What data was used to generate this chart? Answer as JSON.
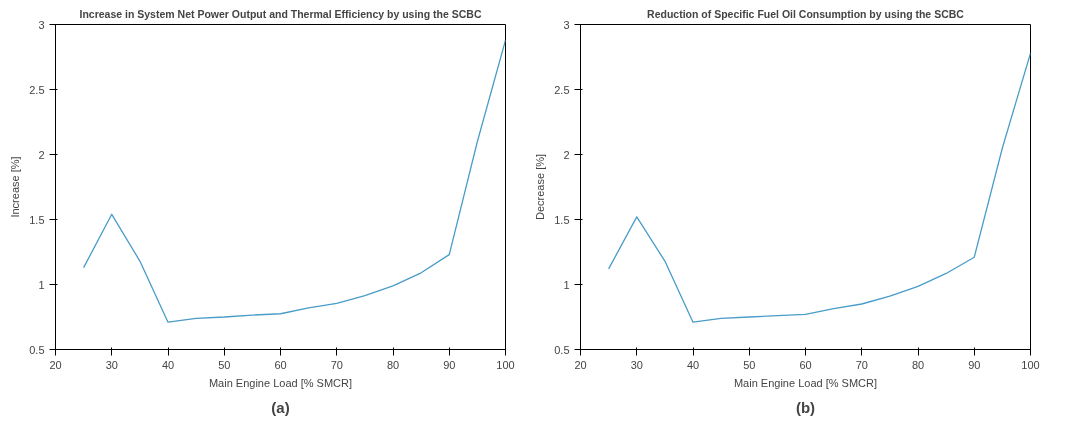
{
  "chart_data": [
    {
      "type": "line",
      "title": "Increase in System Net Power Output and Thermal Efficiency by using the SCBC",
      "xlabel": "Main Engine Load [% SMCR]",
      "ylabel": "Increase [%]",
      "annotations": [
        "(a)"
      ],
      "x": [
        25,
        30,
        35,
        40,
        45,
        50,
        55,
        60,
        65,
        70,
        75,
        80,
        85,
        90,
        95,
        100
      ],
      "series": [
        {
          "color": "#4a9cc8",
          "values": [
            1.13,
            1.54,
            1.18,
            0.71,
            0.74,
            0.75,
            0.765,
            0.775,
            0.82,
            0.855,
            0.915,
            0.99,
            1.09,
            1.23,
            2.1,
            2.88
          ]
        }
      ],
      "xlim": [
        20,
        100
      ],
      "ylim": [
        0.5,
        3
      ],
      "xticks": [
        20,
        30,
        40,
        50,
        60,
        70,
        80,
        90,
        100
      ],
      "yticks": [
        0.5,
        1,
        1.5,
        2,
        2.5,
        3
      ]
    },
    {
      "type": "line",
      "title": "Reduction of Specific Fuel Oil Consumption by using the SCBC",
      "xlabel": "Main Engine Load [% SMCR]",
      "ylabel": "Decrease [%]",
      "annotations": [
        "(b)"
      ],
      "x": [
        25,
        30,
        35,
        40,
        45,
        50,
        55,
        60,
        65,
        70,
        75,
        80,
        85,
        90,
        95,
        100
      ],
      "series": [
        {
          "color": "#4a9cc8",
          "values": [
            1.12,
            1.52,
            1.18,
            0.71,
            0.74,
            0.75,
            0.76,
            0.77,
            0.815,
            0.85,
            0.91,
            0.985,
            1.085,
            1.21,
            2.05,
            2.78
          ]
        }
      ],
      "xlim": [
        20,
        100
      ],
      "ylim": [
        0.5,
        3
      ],
      "xticks": [
        20,
        30,
        40,
        50,
        60,
        70,
        80,
        90,
        100
      ],
      "yticks": [
        0.5,
        1,
        1.5,
        2,
        2.5,
        3
      ]
    }
  ]
}
